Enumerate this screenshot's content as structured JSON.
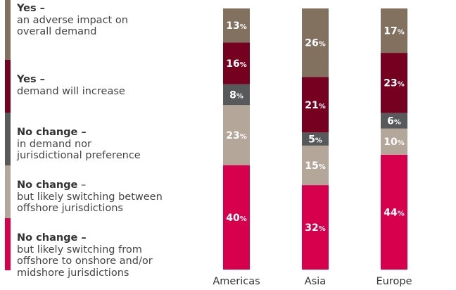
{
  "legend": [
    {
      "bold": "Yes –",
      "lines": [
        "an adverse impact on",
        "overall demand"
      ],
      "color": "#81715e"
    },
    {
      "bold": "Yes –",
      "lines": [
        "demand will increase"
      ],
      "color": "#76001f"
    },
    {
      "bold": "No change –",
      "lines": [
        "in demand nor",
        "jurisdictional preference"
      ],
      "color": "#58595b"
    },
    {
      "bold": "No change",
      "extra": " –",
      "lines": [
        "but likely switching between",
        "offshore jurisdictions"
      ],
      "color": "#b4a698"
    },
    {
      "bold": "No change –",
      "lines": [
        "but likely switching from",
        "offshore to onshore and/or",
        "midshore jurisdictions"
      ],
      "color": "#d6004d"
    }
  ],
  "chart_data": {
    "type": "bar",
    "stacked": true,
    "categories": [
      "Americas",
      "Asia",
      "Europe"
    ],
    "series": [
      {
        "name": "No change – but likely switching from offshore to onshore and/or midshore jurisdictions",
        "color": "#d6004d",
        "values": [
          40,
          32,
          44
        ]
      },
      {
        "name": "No change – but likely switching between offshore jurisdictions",
        "color": "#b4a698",
        "values": [
          23,
          15,
          10
        ]
      },
      {
        "name": "No change – in demand nor jurisdictional preference",
        "color": "#58595b",
        "values": [
          8,
          5,
          6
        ]
      },
      {
        "name": "Yes – demand will increase",
        "color": "#76001f",
        "values": [
          16,
          21,
          23
        ]
      },
      {
        "name": "Yes – an adverse impact on overall demand",
        "color": "#81715e",
        "values": [
          13,
          26,
          17
        ]
      }
    ],
    "value_suffix": "%"
  }
}
